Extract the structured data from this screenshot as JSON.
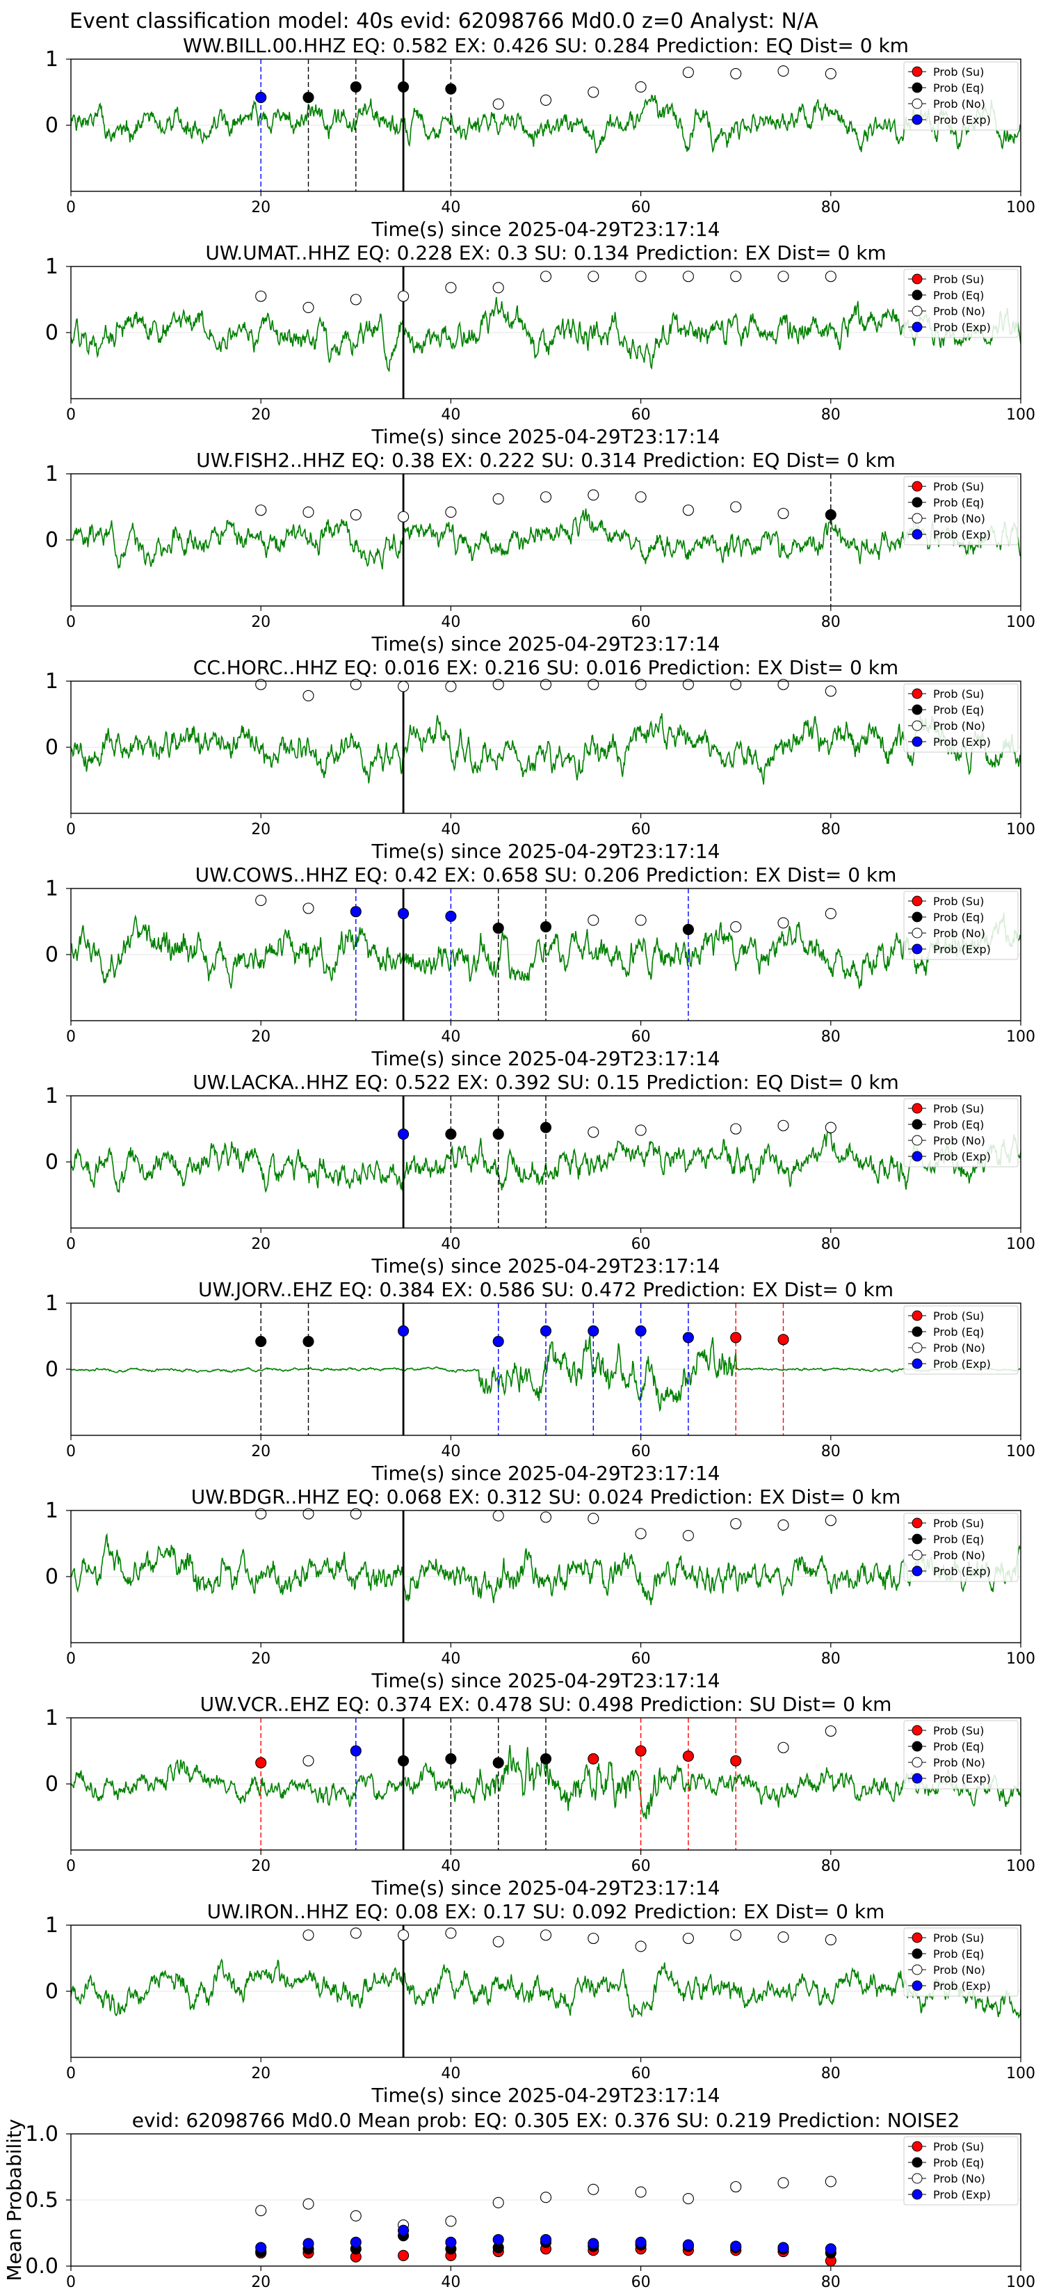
{
  "figure": {
    "title": "Event classification model: 40s evid: 62098766 Md0.0 z=0 Analyst: N/A"
  },
  "legend": {
    "items": [
      {
        "label": "Prob (Su)",
        "color": "#ff0000",
        "filled": true
      },
      {
        "label": "Prob (Eq)",
        "color": "#000000",
        "filled": true
      },
      {
        "label": "Prob (No)",
        "color": "#ffffff",
        "filled": false
      },
      {
        "label": "Prob (Exp)",
        "color": "#0000ff",
        "filled": true
      }
    ]
  },
  "colors": {
    "trace": "#008000",
    "su": "#ff0000",
    "eq": "#000000",
    "no": "#ffffff",
    "exp": "#0000ff"
  },
  "chart_data": [
    {
      "type": "line",
      "title": "WW.BILL.00.HHZ   EQ: 0.582  EX: 0.426  SU: 0.284   Prediction: EQ    Dist= 0 km",
      "xlabel": "Time(s) since 2025-04-29T23:17:14",
      "xlim": [
        0,
        100
      ],
      "ylim": [
        -1,
        1
      ],
      "x_ticks": [
        0,
        20,
        40,
        60,
        80,
        100
      ],
      "y_ticks": [
        0,
        1
      ],
      "p_time": 35,
      "trace_seed": 1,
      "trace_amp": 0.5,
      "burst": null,
      "points": [
        {
          "x": 20,
          "y": 0.42,
          "c": "exp"
        },
        {
          "x": 25,
          "y": 0.42,
          "c": "eq"
        },
        {
          "x": 30,
          "y": 0.58,
          "c": "eq"
        },
        {
          "x": 35,
          "y": 0.58,
          "c": "eq"
        },
        {
          "x": 40,
          "y": 0.55,
          "c": "eq"
        },
        {
          "x": 45,
          "y": 0.32,
          "c": "no"
        },
        {
          "x": 50,
          "y": 0.38,
          "c": "no"
        },
        {
          "x": 55,
          "y": 0.5,
          "c": "no"
        },
        {
          "x": 60,
          "y": 0.58,
          "c": "no"
        },
        {
          "x": 65,
          "y": 0.8,
          "c": "no"
        },
        {
          "x": 70,
          "y": 0.78,
          "c": "no"
        },
        {
          "x": 75,
          "y": 0.82,
          "c": "no"
        },
        {
          "x": 80,
          "y": 0.78,
          "c": "no"
        }
      ],
      "vlines": [
        {
          "x": 20,
          "c": "exp"
        },
        {
          "x": 25,
          "c": "eq"
        },
        {
          "x": 30,
          "c": "eq"
        },
        {
          "x": 40,
          "c": "eq"
        }
      ]
    },
    {
      "type": "line",
      "title": "UW.UMAT..HHZ   EQ: 0.228  EX: 0.3  SU: 0.134   Prediction: EX    Dist= 0 km",
      "xlabel": "Time(s) since 2025-04-29T23:17:14",
      "xlim": [
        0,
        100
      ],
      "ylim": [
        -1,
        1
      ],
      "x_ticks": [
        0,
        20,
        40,
        60,
        80,
        100
      ],
      "y_ticks": [
        0,
        1
      ],
      "p_time": 35,
      "trace_seed": 2,
      "trace_amp": 0.55,
      "burst": null,
      "points": [
        {
          "x": 20,
          "y": 0.55,
          "c": "no"
        },
        {
          "x": 25,
          "y": 0.38,
          "c": "no"
        },
        {
          "x": 30,
          "y": 0.5,
          "c": "no"
        },
        {
          "x": 35,
          "y": 0.55,
          "c": "no"
        },
        {
          "x": 40,
          "y": 0.68,
          "c": "no"
        },
        {
          "x": 45,
          "y": 0.68,
          "c": "no"
        },
        {
          "x": 50,
          "y": 0.85,
          "c": "no"
        },
        {
          "x": 55,
          "y": 0.85,
          "c": "no"
        },
        {
          "x": 60,
          "y": 0.85,
          "c": "no"
        },
        {
          "x": 65,
          "y": 0.85,
          "c": "no"
        },
        {
          "x": 70,
          "y": 0.85,
          "c": "no"
        },
        {
          "x": 75,
          "y": 0.85,
          "c": "no"
        },
        {
          "x": 80,
          "y": 0.85,
          "c": "no"
        }
      ],
      "vlines": []
    },
    {
      "type": "line",
      "title": "UW.FISH2..HHZ   EQ: 0.38  EX: 0.222  SU: 0.314   Prediction: EQ    Dist= 0 km",
      "xlabel": "Time(s) since 2025-04-29T23:17:14",
      "xlim": [
        0,
        100
      ],
      "ylim": [
        -1,
        1
      ],
      "x_ticks": [
        0,
        20,
        40,
        60,
        80,
        100
      ],
      "y_ticks": [
        0,
        1
      ],
      "p_time": 35,
      "trace_seed": 3,
      "trace_amp": 0.5,
      "burst": null,
      "points": [
        {
          "x": 20,
          "y": 0.45,
          "c": "no"
        },
        {
          "x": 25,
          "y": 0.42,
          "c": "no"
        },
        {
          "x": 30,
          "y": 0.38,
          "c": "no"
        },
        {
          "x": 35,
          "y": 0.35,
          "c": "no"
        },
        {
          "x": 40,
          "y": 0.42,
          "c": "no"
        },
        {
          "x": 45,
          "y": 0.62,
          "c": "no"
        },
        {
          "x": 50,
          "y": 0.65,
          "c": "no"
        },
        {
          "x": 55,
          "y": 0.68,
          "c": "no"
        },
        {
          "x": 60,
          "y": 0.65,
          "c": "no"
        },
        {
          "x": 65,
          "y": 0.45,
          "c": "no"
        },
        {
          "x": 70,
          "y": 0.5,
          "c": "no"
        },
        {
          "x": 75,
          "y": 0.4,
          "c": "no"
        },
        {
          "x": 80,
          "y": 0.38,
          "c": "eq"
        }
      ],
      "vlines": [
        {
          "x": 80,
          "c": "eq"
        }
      ]
    },
    {
      "type": "line",
      "title": "CC.HORC..HHZ   EQ: 0.016  EX: 0.216  SU: 0.016   Prediction: EX    Dist= 0 km",
      "xlabel": "Time(s) since 2025-04-29T23:17:14",
      "xlim": [
        0,
        100
      ],
      "ylim": [
        -1,
        1
      ],
      "x_ticks": [
        0,
        20,
        40,
        60,
        80,
        100
      ],
      "y_ticks": [
        0,
        1
      ],
      "p_time": 35,
      "trace_seed": 4,
      "trace_amp": 0.6,
      "burst": null,
      "points": [
        {
          "x": 20,
          "y": 0.95,
          "c": "no"
        },
        {
          "x": 25,
          "y": 0.78,
          "c": "no"
        },
        {
          "x": 30,
          "y": 0.95,
          "c": "no"
        },
        {
          "x": 35,
          "y": 0.92,
          "c": "no"
        },
        {
          "x": 40,
          "y": 0.92,
          "c": "no"
        },
        {
          "x": 45,
          "y": 0.95,
          "c": "no"
        },
        {
          "x": 50,
          "y": 0.95,
          "c": "no"
        },
        {
          "x": 55,
          "y": 0.95,
          "c": "no"
        },
        {
          "x": 60,
          "y": 0.95,
          "c": "no"
        },
        {
          "x": 65,
          "y": 0.95,
          "c": "no"
        },
        {
          "x": 70,
          "y": 0.95,
          "c": "no"
        },
        {
          "x": 75,
          "y": 0.95,
          "c": "no"
        },
        {
          "x": 80,
          "y": 0.85,
          "c": "no"
        }
      ],
      "vlines": []
    },
    {
      "type": "line",
      "title": "UW.COWS..HHZ   EQ: 0.42  EX: 0.658  SU: 0.206   Prediction: EX    Dist= 0 km",
      "xlabel": "Time(s) since 2025-04-29T23:17:14",
      "xlim": [
        0,
        100
      ],
      "ylim": [
        -1,
        1
      ],
      "x_ticks": [
        0,
        20,
        40,
        60,
        80,
        100
      ],
      "y_ticks": [
        0,
        1
      ],
      "p_time": 35,
      "trace_seed": 5,
      "trace_amp": 0.65,
      "burst": null,
      "points": [
        {
          "x": 20,
          "y": 0.82,
          "c": "no"
        },
        {
          "x": 25,
          "y": 0.7,
          "c": "no"
        },
        {
          "x": 30,
          "y": 0.65,
          "c": "exp"
        },
        {
          "x": 35,
          "y": 0.62,
          "c": "exp"
        },
        {
          "x": 40,
          "y": 0.58,
          "c": "exp"
        },
        {
          "x": 45,
          "y": 0.4,
          "c": "eq"
        },
        {
          "x": 50,
          "y": 0.42,
          "c": "eq"
        },
        {
          "x": 55,
          "y": 0.52,
          "c": "no"
        },
        {
          "x": 60,
          "y": 0.52,
          "c": "no"
        },
        {
          "x": 65,
          "y": 0.38,
          "c": "eq"
        },
        {
          "x": 70,
          "y": 0.42,
          "c": "no"
        },
        {
          "x": 75,
          "y": 0.48,
          "c": "no"
        },
        {
          "x": 80,
          "y": 0.62,
          "c": "no"
        }
      ],
      "vlines": [
        {
          "x": 30,
          "c": "exp"
        },
        {
          "x": 40,
          "c": "exp"
        },
        {
          "x": 45,
          "c": "eq"
        },
        {
          "x": 50,
          "c": "eq"
        },
        {
          "x": 65,
          "c": "exp"
        }
      ]
    },
    {
      "type": "line",
      "title": "UW.LACKA..HHZ   EQ: 0.522  EX: 0.392  SU: 0.15   Prediction: EQ    Dist= 0 km",
      "xlabel": "Time(s) since 2025-04-29T23:17:14",
      "xlim": [
        0,
        100
      ],
      "ylim": [
        -1,
        1
      ],
      "x_ticks": [
        0,
        20,
        40,
        60,
        80,
        100
      ],
      "y_ticks": [
        0,
        1
      ],
      "p_time": 35,
      "trace_seed": 6,
      "trace_amp": 0.55,
      "burst": null,
      "points": [
        {
          "x": 35,
          "y": 0.42,
          "c": "exp"
        },
        {
          "x": 40,
          "y": 0.42,
          "c": "eq"
        },
        {
          "x": 45,
          "y": 0.42,
          "c": "eq"
        },
        {
          "x": 50,
          "y": 0.52,
          "c": "eq"
        },
        {
          "x": 55,
          "y": 0.45,
          "c": "no"
        },
        {
          "x": 60,
          "y": 0.48,
          "c": "no"
        },
        {
          "x": 70,
          "y": 0.5,
          "c": "no"
        },
        {
          "x": 75,
          "y": 0.55,
          "c": "no"
        },
        {
          "x": 80,
          "y": 0.52,
          "c": "no"
        }
      ],
      "vlines": [
        {
          "x": 40,
          "c": "eq"
        },
        {
          "x": 45,
          "c": "eq"
        },
        {
          "x": 50,
          "c": "eq"
        }
      ]
    },
    {
      "type": "line",
      "title": "UW.JORV..EHZ   EQ: 0.384  EX: 0.586  SU: 0.472   Prediction: EX    Dist= 0 km",
      "xlabel": "Time(s) since 2025-04-29T23:17:14",
      "xlim": [
        0,
        100
      ],
      "ylim": [
        -1,
        1
      ],
      "x_ticks": [
        0,
        20,
        40,
        60,
        80,
        100
      ],
      "y_ticks": [
        0,
        1
      ],
      "p_time": 35,
      "trace_seed": 7,
      "trace_amp": 0.05,
      "burst": [
        43,
        70,
        0.75
      ],
      "points": [
        {
          "x": 20,
          "y": 0.42,
          "c": "eq"
        },
        {
          "x": 25,
          "y": 0.42,
          "c": "eq"
        },
        {
          "x": 35,
          "y": 0.58,
          "c": "exp"
        },
        {
          "x": 45,
          "y": 0.42,
          "c": "exp"
        },
        {
          "x": 50,
          "y": 0.58,
          "c": "exp"
        },
        {
          "x": 55,
          "y": 0.58,
          "c": "exp"
        },
        {
          "x": 60,
          "y": 0.58,
          "c": "exp"
        },
        {
          "x": 65,
          "y": 0.48,
          "c": "exp"
        },
        {
          "x": 70,
          "y": 0.48,
          "c": "su"
        },
        {
          "x": 75,
          "y": 0.45,
          "c": "su"
        }
      ],
      "vlines": [
        {
          "x": 20,
          "c": "eq"
        },
        {
          "x": 25,
          "c": "eq"
        },
        {
          "x": 45,
          "c": "exp"
        },
        {
          "x": 50,
          "c": "exp"
        },
        {
          "x": 55,
          "c": "exp"
        },
        {
          "x": 60,
          "c": "exp"
        },
        {
          "x": 65,
          "c": "exp"
        },
        {
          "x": 70,
          "c": "su"
        },
        {
          "x": 75,
          "c": "su"
        }
      ]
    },
    {
      "type": "line",
      "title": "UW.BDGR..HHZ   EQ: 0.068  EX: 0.312  SU: 0.024   Prediction: EX    Dist= 0 km",
      "xlabel": "Time(s) since 2025-04-29T23:17:14",
      "xlim": [
        0,
        100
      ],
      "ylim": [
        -1,
        1
      ],
      "x_ticks": [
        0,
        20,
        40,
        60,
        80,
        100
      ],
      "y_ticks": [
        0,
        1
      ],
      "p_time": 35,
      "trace_seed": 8,
      "trace_amp": 0.6,
      "burst": null,
      "points": [
        {
          "x": 20,
          "y": 0.95,
          "c": "no"
        },
        {
          "x": 25,
          "y": 0.95,
          "c": "no"
        },
        {
          "x": 30,
          "y": 0.95,
          "c": "no"
        },
        {
          "x": 45,
          "y": 0.92,
          "c": "no"
        },
        {
          "x": 50,
          "y": 0.9,
          "c": "no"
        },
        {
          "x": 55,
          "y": 0.88,
          "c": "no"
        },
        {
          "x": 60,
          "y": 0.65,
          "c": "no"
        },
        {
          "x": 65,
          "y": 0.62,
          "c": "no"
        },
        {
          "x": 70,
          "y": 0.8,
          "c": "no"
        },
        {
          "x": 75,
          "y": 0.78,
          "c": "no"
        },
        {
          "x": 80,
          "y": 0.85,
          "c": "no"
        }
      ],
      "vlines": []
    },
    {
      "type": "line",
      "title": "UW.VCR..EHZ   EQ: 0.374  EX: 0.478  SU: 0.498   Prediction: SU    Dist= 0 km",
      "xlabel": "Time(s) since 2025-04-29T23:17:14",
      "xlim": [
        0,
        100
      ],
      "ylim": [
        -1,
        1
      ],
      "x_ticks": [
        0,
        20,
        40,
        60,
        80,
        100
      ],
      "y_ticks": [
        0,
        1
      ],
      "p_time": 35,
      "trace_seed": 9,
      "trace_amp": 0.45,
      "burst": [
        43,
        62,
        0.85
      ],
      "points": [
        {
          "x": 20,
          "y": 0.32,
          "c": "su"
        },
        {
          "x": 25,
          "y": 0.35,
          "c": "no"
        },
        {
          "x": 30,
          "y": 0.5,
          "c": "exp"
        },
        {
          "x": 35,
          "y": 0.35,
          "c": "eq"
        },
        {
          "x": 40,
          "y": 0.38,
          "c": "eq"
        },
        {
          "x": 45,
          "y": 0.32,
          "c": "eq"
        },
        {
          "x": 50,
          "y": 0.38,
          "c": "eq"
        },
        {
          "x": 55,
          "y": 0.38,
          "c": "su"
        },
        {
          "x": 60,
          "y": 0.5,
          "c": "su"
        },
        {
          "x": 65,
          "y": 0.42,
          "c": "su"
        },
        {
          "x": 70,
          "y": 0.35,
          "c": "su"
        },
        {
          "x": 75,
          "y": 0.55,
          "c": "no"
        },
        {
          "x": 80,
          "y": 0.8,
          "c": "no"
        }
      ],
      "vlines": [
        {
          "x": 20,
          "c": "su"
        },
        {
          "x": 30,
          "c": "exp"
        },
        {
          "x": 40,
          "c": "eq"
        },
        {
          "x": 45,
          "c": "eq"
        },
        {
          "x": 50,
          "c": "eq"
        },
        {
          "x": 60,
          "c": "su"
        },
        {
          "x": 65,
          "c": "su"
        },
        {
          "x": 70,
          "c": "su"
        }
      ]
    },
    {
      "type": "line",
      "title": "UW.IRON..HHZ   EQ: 0.08  EX: 0.17  SU: 0.092   Prediction: EX    Dist= 0 km",
      "xlabel": "Time(s) since 2025-04-29T23:17:14",
      "xlim": [
        0,
        100
      ],
      "ylim": [
        -1,
        1
      ],
      "x_ticks": [
        0,
        20,
        40,
        60,
        80,
        100
      ],
      "y_ticks": [
        0,
        1
      ],
      "p_time": 35,
      "trace_seed": 10,
      "trace_amp": 0.5,
      "burst": null,
      "points": [
        {
          "x": 25,
          "y": 0.85,
          "c": "no"
        },
        {
          "x": 30,
          "y": 0.88,
          "c": "no"
        },
        {
          "x": 35,
          "y": 0.85,
          "c": "no"
        },
        {
          "x": 40,
          "y": 0.88,
          "c": "no"
        },
        {
          "x": 45,
          "y": 0.75,
          "c": "no"
        },
        {
          "x": 50,
          "y": 0.85,
          "c": "no"
        },
        {
          "x": 55,
          "y": 0.8,
          "c": "no"
        },
        {
          "x": 60,
          "y": 0.68,
          "c": "no"
        },
        {
          "x": 65,
          "y": 0.8,
          "c": "no"
        },
        {
          "x": 70,
          "y": 0.85,
          "c": "no"
        },
        {
          "x": 75,
          "y": 0.82,
          "c": "no"
        },
        {
          "x": 80,
          "y": 0.78,
          "c": "no"
        }
      ],
      "vlines": []
    },
    {
      "type": "scatter",
      "title": "evid: 62098766  Md0.0   Mean prob:   EQ: 0.305  EX: 0.376  SU: 0.219   Prediction: NOISE2",
      "xlabel": "",
      "ylabel": "Mean Probability",
      "xlim": [
        0,
        100
      ],
      "ylim": [
        0,
        1
      ],
      "x_ticks": [
        0,
        20,
        40,
        60,
        80,
        100
      ],
      "y_ticks": [
        0,
        0.5,
        1
      ],
      "x": [
        20,
        25,
        30,
        35,
        40,
        45,
        50,
        55,
        60,
        65,
        70,
        75,
        80
      ],
      "series": [
        {
          "name": "Prob (Su)",
          "c": "su",
          "values": [
            0.1,
            0.1,
            0.07,
            0.08,
            0.08,
            0.11,
            0.13,
            0.12,
            0.13,
            0.12,
            0.12,
            0.11,
            0.04
          ]
        },
        {
          "name": "Prob (Eq)",
          "c": "eq",
          "values": [
            0.11,
            0.13,
            0.13,
            0.23,
            0.13,
            0.14,
            0.18,
            0.15,
            0.16,
            0.15,
            0.14,
            0.13,
            0.1
          ]
        },
        {
          "name": "Prob (No)",
          "c": "no",
          "values": [
            0.42,
            0.47,
            0.38,
            0.31,
            0.34,
            0.48,
            0.52,
            0.58,
            0.56,
            0.51,
            0.6,
            0.63,
            0.64
          ]
        },
        {
          "name": "Prob (Exp)",
          "c": "exp",
          "values": [
            0.14,
            0.17,
            0.18,
            0.27,
            0.18,
            0.2,
            0.2,
            0.17,
            0.18,
            0.16,
            0.15,
            0.14,
            0.13
          ]
        }
      ]
    }
  ]
}
